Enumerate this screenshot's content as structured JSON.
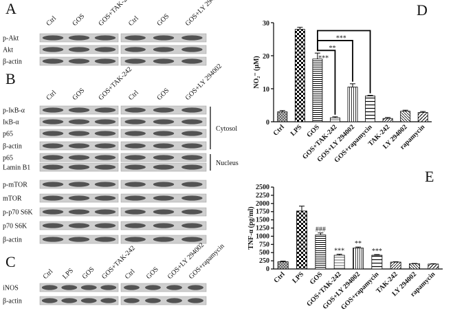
{
  "blots": [
    {
      "label": "A",
      "lanes": [
        "Ctrl",
        "GOS",
        "GOS+TAK-242",
        "Ctrl",
        "GOS",
        "GOS+LY 294002"
      ],
      "rows": [
        "p-Akt",
        "Akt",
        "β-actin"
      ]
    },
    {
      "label": "B",
      "lanes": [
        "Ctrl",
        "GOS",
        "GOS+TAK-242",
        "Ctrl",
        "GOS",
        "GOS+LY 294002"
      ],
      "rows": [
        "p-IκB-α",
        "IκB-α",
        "p65",
        "β-actin",
        "p65",
        "Lamin B1",
        "p-mTOR",
        "mTOR",
        "p-p70 S6K",
        "p70 S6K",
        "β-actin"
      ],
      "compartments": [
        "Cytosol",
        "Nucleus"
      ]
    },
    {
      "label": "C",
      "lanes": [
        "Ctrl",
        "LPS",
        "GOS",
        "GOS+TAK-242",
        "Ctrl",
        "GOS",
        "GOS+LY 294002",
        "GOS+rapamycin"
      ],
      "rows": [
        "iNOS",
        "β-actin"
      ]
    }
  ],
  "chart_data": [
    {
      "type": "bar",
      "panel": "D",
      "y_label": "NO₂⁻ (μM)",
      "categories": [
        "Ctrl",
        "LPS",
        "GOS",
        "GOS+TAK-242",
        "GOS+LY 294002",
        "GOS+rapamycin",
        "TAK-242",
        "LY 294002",
        "rapamycin"
      ],
      "values": [
        3,
        28,
        19,
        1.2,
        10.5,
        7.8,
        1,
        3.2,
        2.8
      ],
      "errors": [
        0.4,
        0.6,
        1.8,
        0.3,
        1,
        0.2,
        0.3,
        0.3,
        0.3
      ],
      "ylim": [
        0,
        30
      ],
      "yticks": [
        0,
        10,
        20,
        30
      ],
      "brackets": [
        {
          "text": "***",
          "from": "GOS",
          "to": "GOS+TAK-242"
        },
        {
          "text": "**",
          "from": "GOS",
          "to": "GOS+LY 294002"
        },
        {
          "text": "***",
          "from": "GOS",
          "to": "GOS+rapamycin"
        }
      ]
    },
    {
      "type": "bar",
      "panel": "E",
      "y_label": "TNF-α (pg/ml)",
      "categories": [
        "Ctrl",
        "LPS",
        "GOS",
        "GOS+TAK-242",
        "GOS+LY 294002",
        "GOS+rapamycin",
        "TAK-242",
        "LY 294002",
        "rapamycin"
      ],
      "values": [
        220,
        1770,
        1040,
        420,
        640,
        420,
        210,
        160,
        150
      ],
      "errors": [
        20,
        150,
        60,
        30,
        30,
        20,
        10,
        10,
        10
      ],
      "ylim": [
        0,
        2500
      ],
      "yticks": [
        0,
        250,
        500,
        750,
        1000,
        1250,
        1500,
        1750,
        2000,
        2250,
        2500
      ],
      "annotations": [
        null,
        null,
        "###",
        "***",
        "**",
        "***",
        null,
        null,
        null
      ]
    }
  ]
}
